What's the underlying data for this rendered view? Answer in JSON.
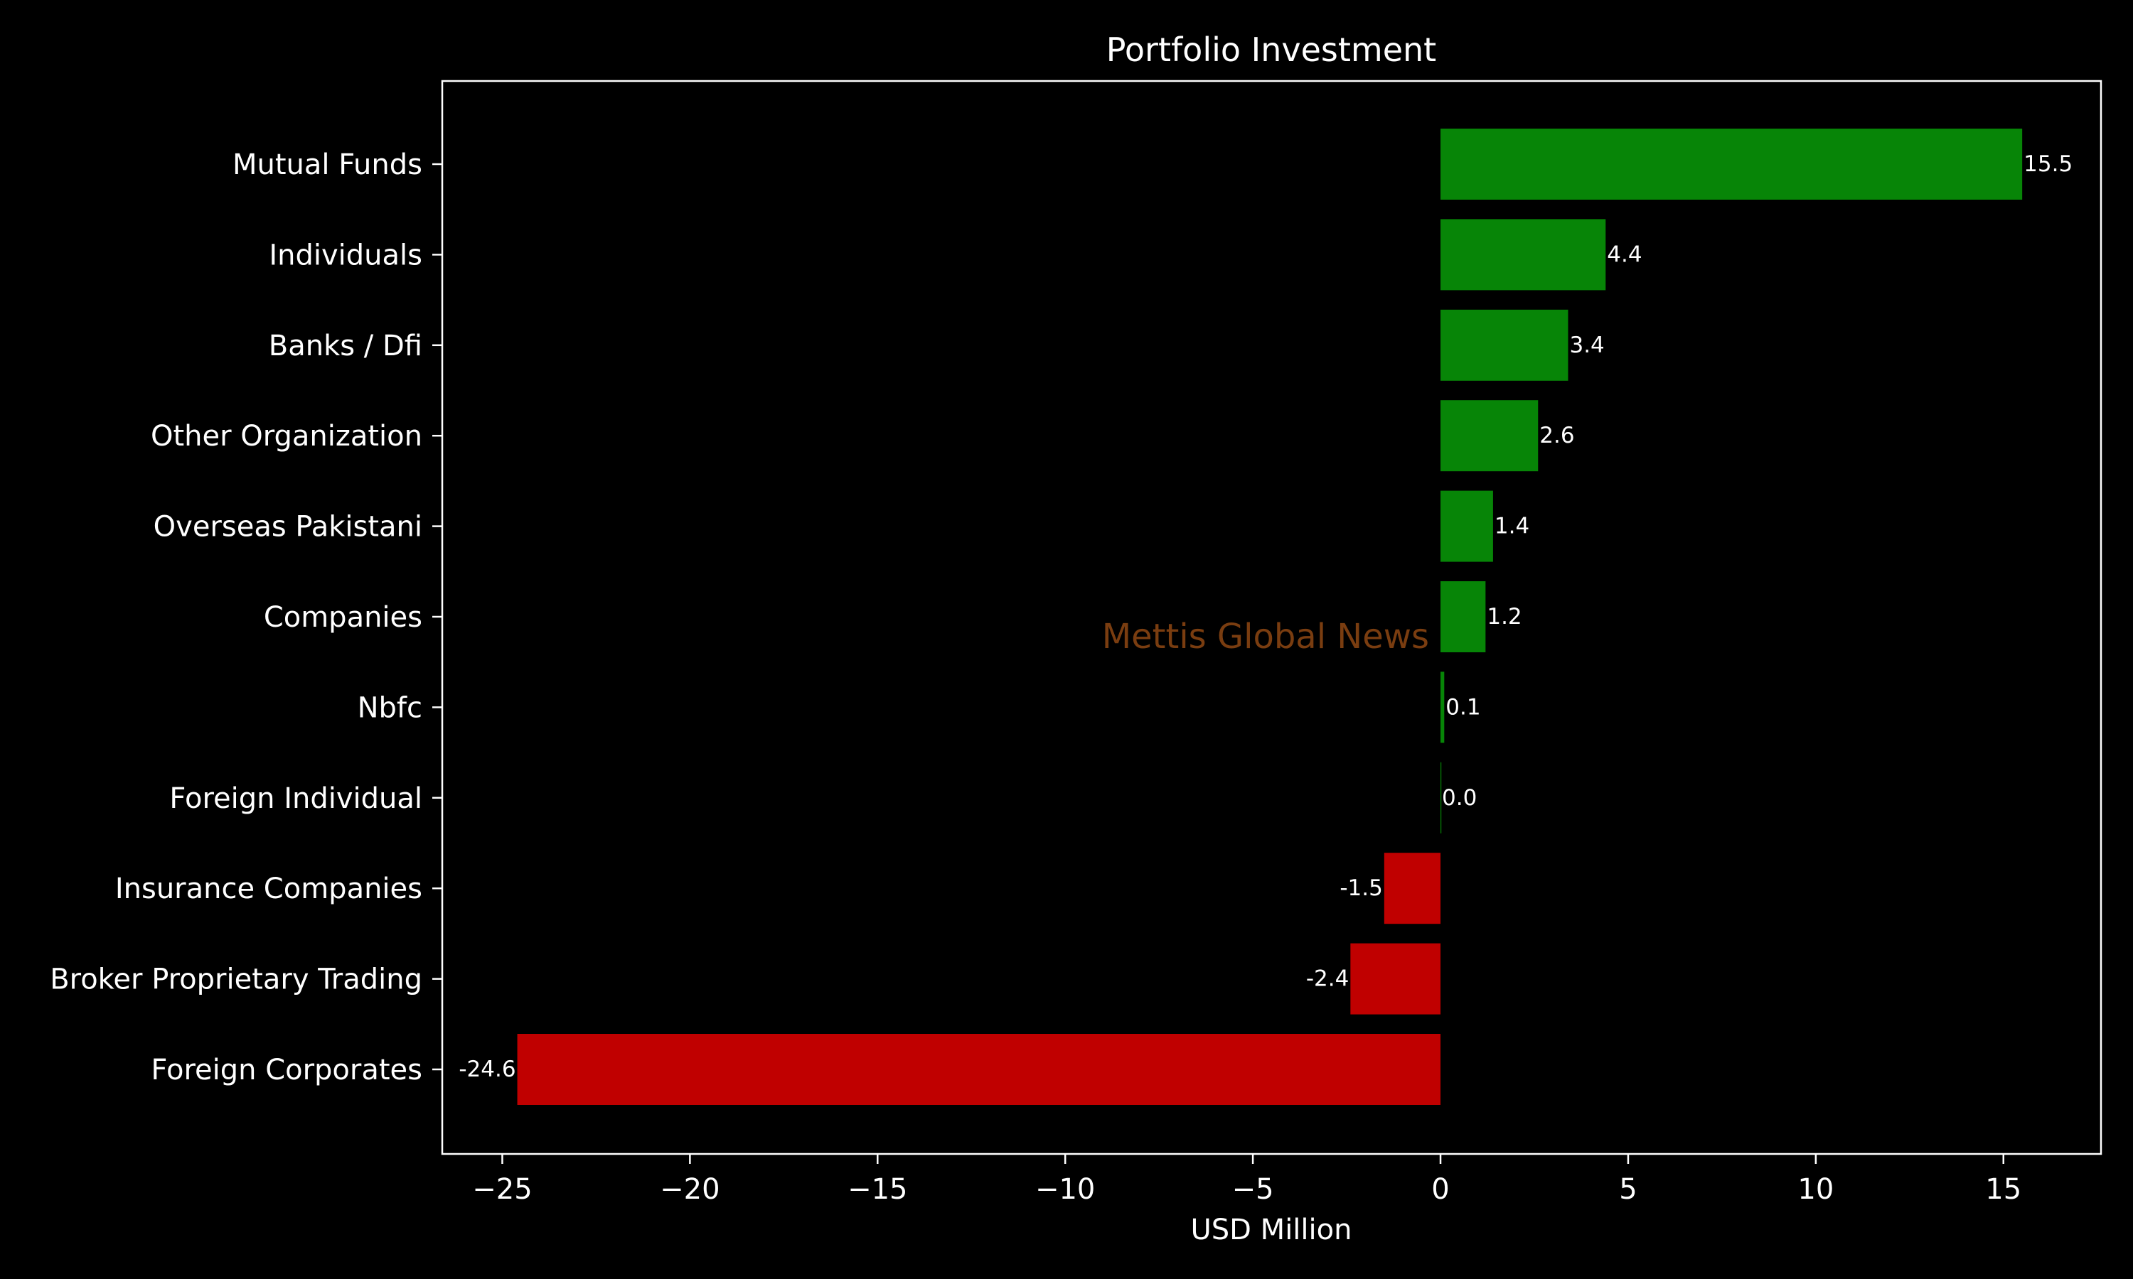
{
  "chart_data": {
    "type": "bar",
    "orientation": "horizontal",
    "title": "Portfolio Investment",
    "xlabel": "USD Million",
    "ylabel": "",
    "categories": [
      "Mutual Funds",
      "Individuals",
      "Banks / Dfi",
      "Other Organization",
      "Overseas Pakistani",
      "Companies",
      "Nbfc",
      "Foreign Individual",
      "Insurance Companies",
      "Broker Proprietary Trading",
      "Foreign Corporates"
    ],
    "values": [
      15.5,
      4.4,
      3.4,
      2.6,
      1.4,
      1.2,
      0.1,
      0.0,
      -1.5,
      -2.4,
      -24.6
    ],
    "value_labels": [
      "15.5",
      "4.4",
      "3.4",
      "2.6",
      "1.4",
      "1.2",
      "0.1",
      "0.0",
      "-1.5",
      "-2.4",
      "-24.6"
    ],
    "xlim": [
      -26.6,
      17.6
    ],
    "xticks": [
      -25,
      -20,
      -15,
      -10,
      -5,
      0,
      5,
      10,
      15
    ],
    "xtick_labels": [
      "−25",
      "−20",
      "−15",
      "−10",
      "−5",
      "0",
      "5",
      "10",
      "15"
    ],
    "grid": false,
    "legend": "none",
    "colors": {
      "positive": "#078507",
      "negative": "#c00000",
      "background": "#000000",
      "text": "#ffffff",
      "watermark": "#7a3d10"
    },
    "watermark": "Mettis Global News"
  }
}
